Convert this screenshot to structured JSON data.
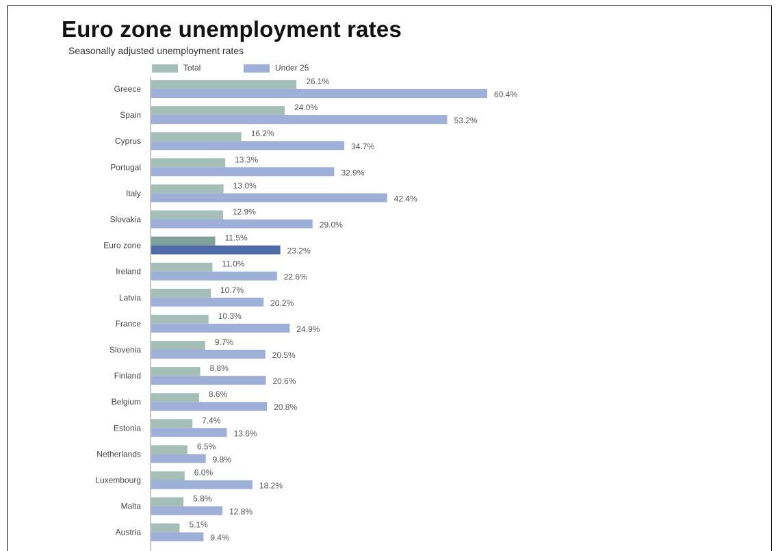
{
  "chart_data": {
    "type": "bar",
    "orientation": "horizontal",
    "title": "Euro zone unemployment rates",
    "subtitle": "Seasonally adjusted unemployment rates",
    "categories": [
      "Greece",
      "Spain",
      "Cyprus",
      "Portugal",
      "Italy",
      "Slovakia",
      "Euro zone",
      "Ireland",
      "Latvia",
      "France",
      "Slovenia",
      "Finland",
      "Belgium",
      "Estonia",
      "Netherlands",
      "Luxembourg",
      "Malta",
      "Austria"
    ],
    "series": [
      {
        "name": "Total",
        "color": "#a3bfb7",
        "highlight_color": "#7ea39a",
        "values": [
          26.1,
          24.0,
          16.2,
          13.3,
          13.0,
          12.9,
          11.5,
          11.0,
          10.7,
          10.3,
          9.7,
          8.8,
          8.6,
          7.4,
          6.5,
          6.0,
          5.8,
          5.1
        ],
        "labels": [
          "26.1%",
          "24.0%",
          "16.2%",
          "13.3%",
          "13.0%",
          "12.9%",
          "11.5%",
          "11.0%",
          "10.7%",
          "10.3%",
          "9.7%",
          "8.8%",
          "8.6%",
          "7.4%",
          "6.5%",
          "6.0%",
          "5.8%",
          "5.1%"
        ]
      },
      {
        "name": "Under 25",
        "color": "#9eb0d8",
        "highlight_color": "#4f6aa8",
        "values": [
          60.4,
          53.2,
          34.7,
          32.9,
          42.4,
          29.0,
          23.2,
          22.6,
          20.2,
          24.9,
          20.5,
          20.6,
          20.8,
          13.6,
          9.8,
          18.2,
          12.8,
          9.4
        ],
        "labels": [
          "60.4%",
          "53.2%",
          "34.7%",
          "32.9%",
          "42.4%",
          "29.0%",
          "23.2%",
          "22.6%",
          "20.2%",
          "24.9%",
          "20.5%",
          "20.6%",
          "20.8%",
          "13.6%",
          "9.8%",
          "18.2%",
          "12.8%",
          "9.4%"
        ]
      }
    ],
    "highlight_category": "Euro zone",
    "xlabel": "",
    "ylabel": "",
    "grid": false,
    "legend_position": "top"
  }
}
